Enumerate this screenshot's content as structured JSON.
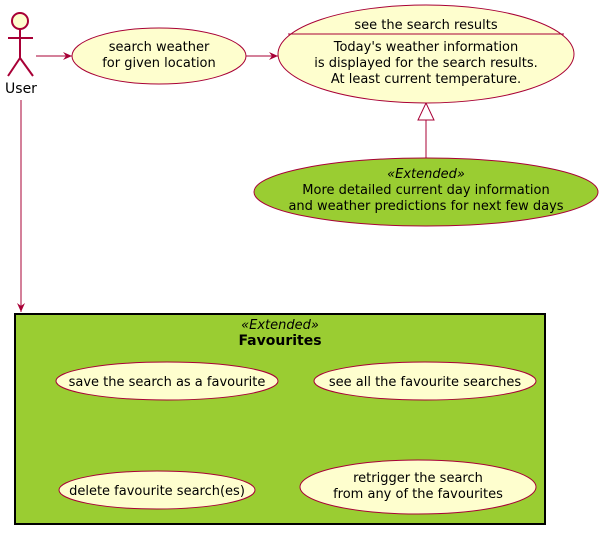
{
  "colors": {
    "usecase_fill": "#FEFECE",
    "usecase_stroke": "#A80036",
    "extended_fill": "#9ACD32",
    "arrow": "#A80036",
    "package_border": "#000000"
  },
  "actor": {
    "label": "User",
    "icon": "stick-figure-icon"
  },
  "usecases": {
    "search_weather": [
      "search weather",
      "for given location"
    ],
    "see_results": {
      "title": "see the search results",
      "body": [
        "Today's weather information",
        "is displayed for the search results.",
        "At least current temperature."
      ]
    },
    "detailed": {
      "stereotype": "«Extended»",
      "lines": [
        "More detailed current day information",
        "and weather predictions for next few days"
      ]
    }
  },
  "favourites_package": {
    "stereotype": "«Extended»",
    "title": "Favourites",
    "items": {
      "save": [
        "save the search as a favourite"
      ],
      "see_all": [
        "see all the favourite searches"
      ],
      "delete": [
        "delete favourite search(es)"
      ],
      "retrigger": [
        "retrigger the search",
        "from any of the favourites"
      ]
    }
  }
}
